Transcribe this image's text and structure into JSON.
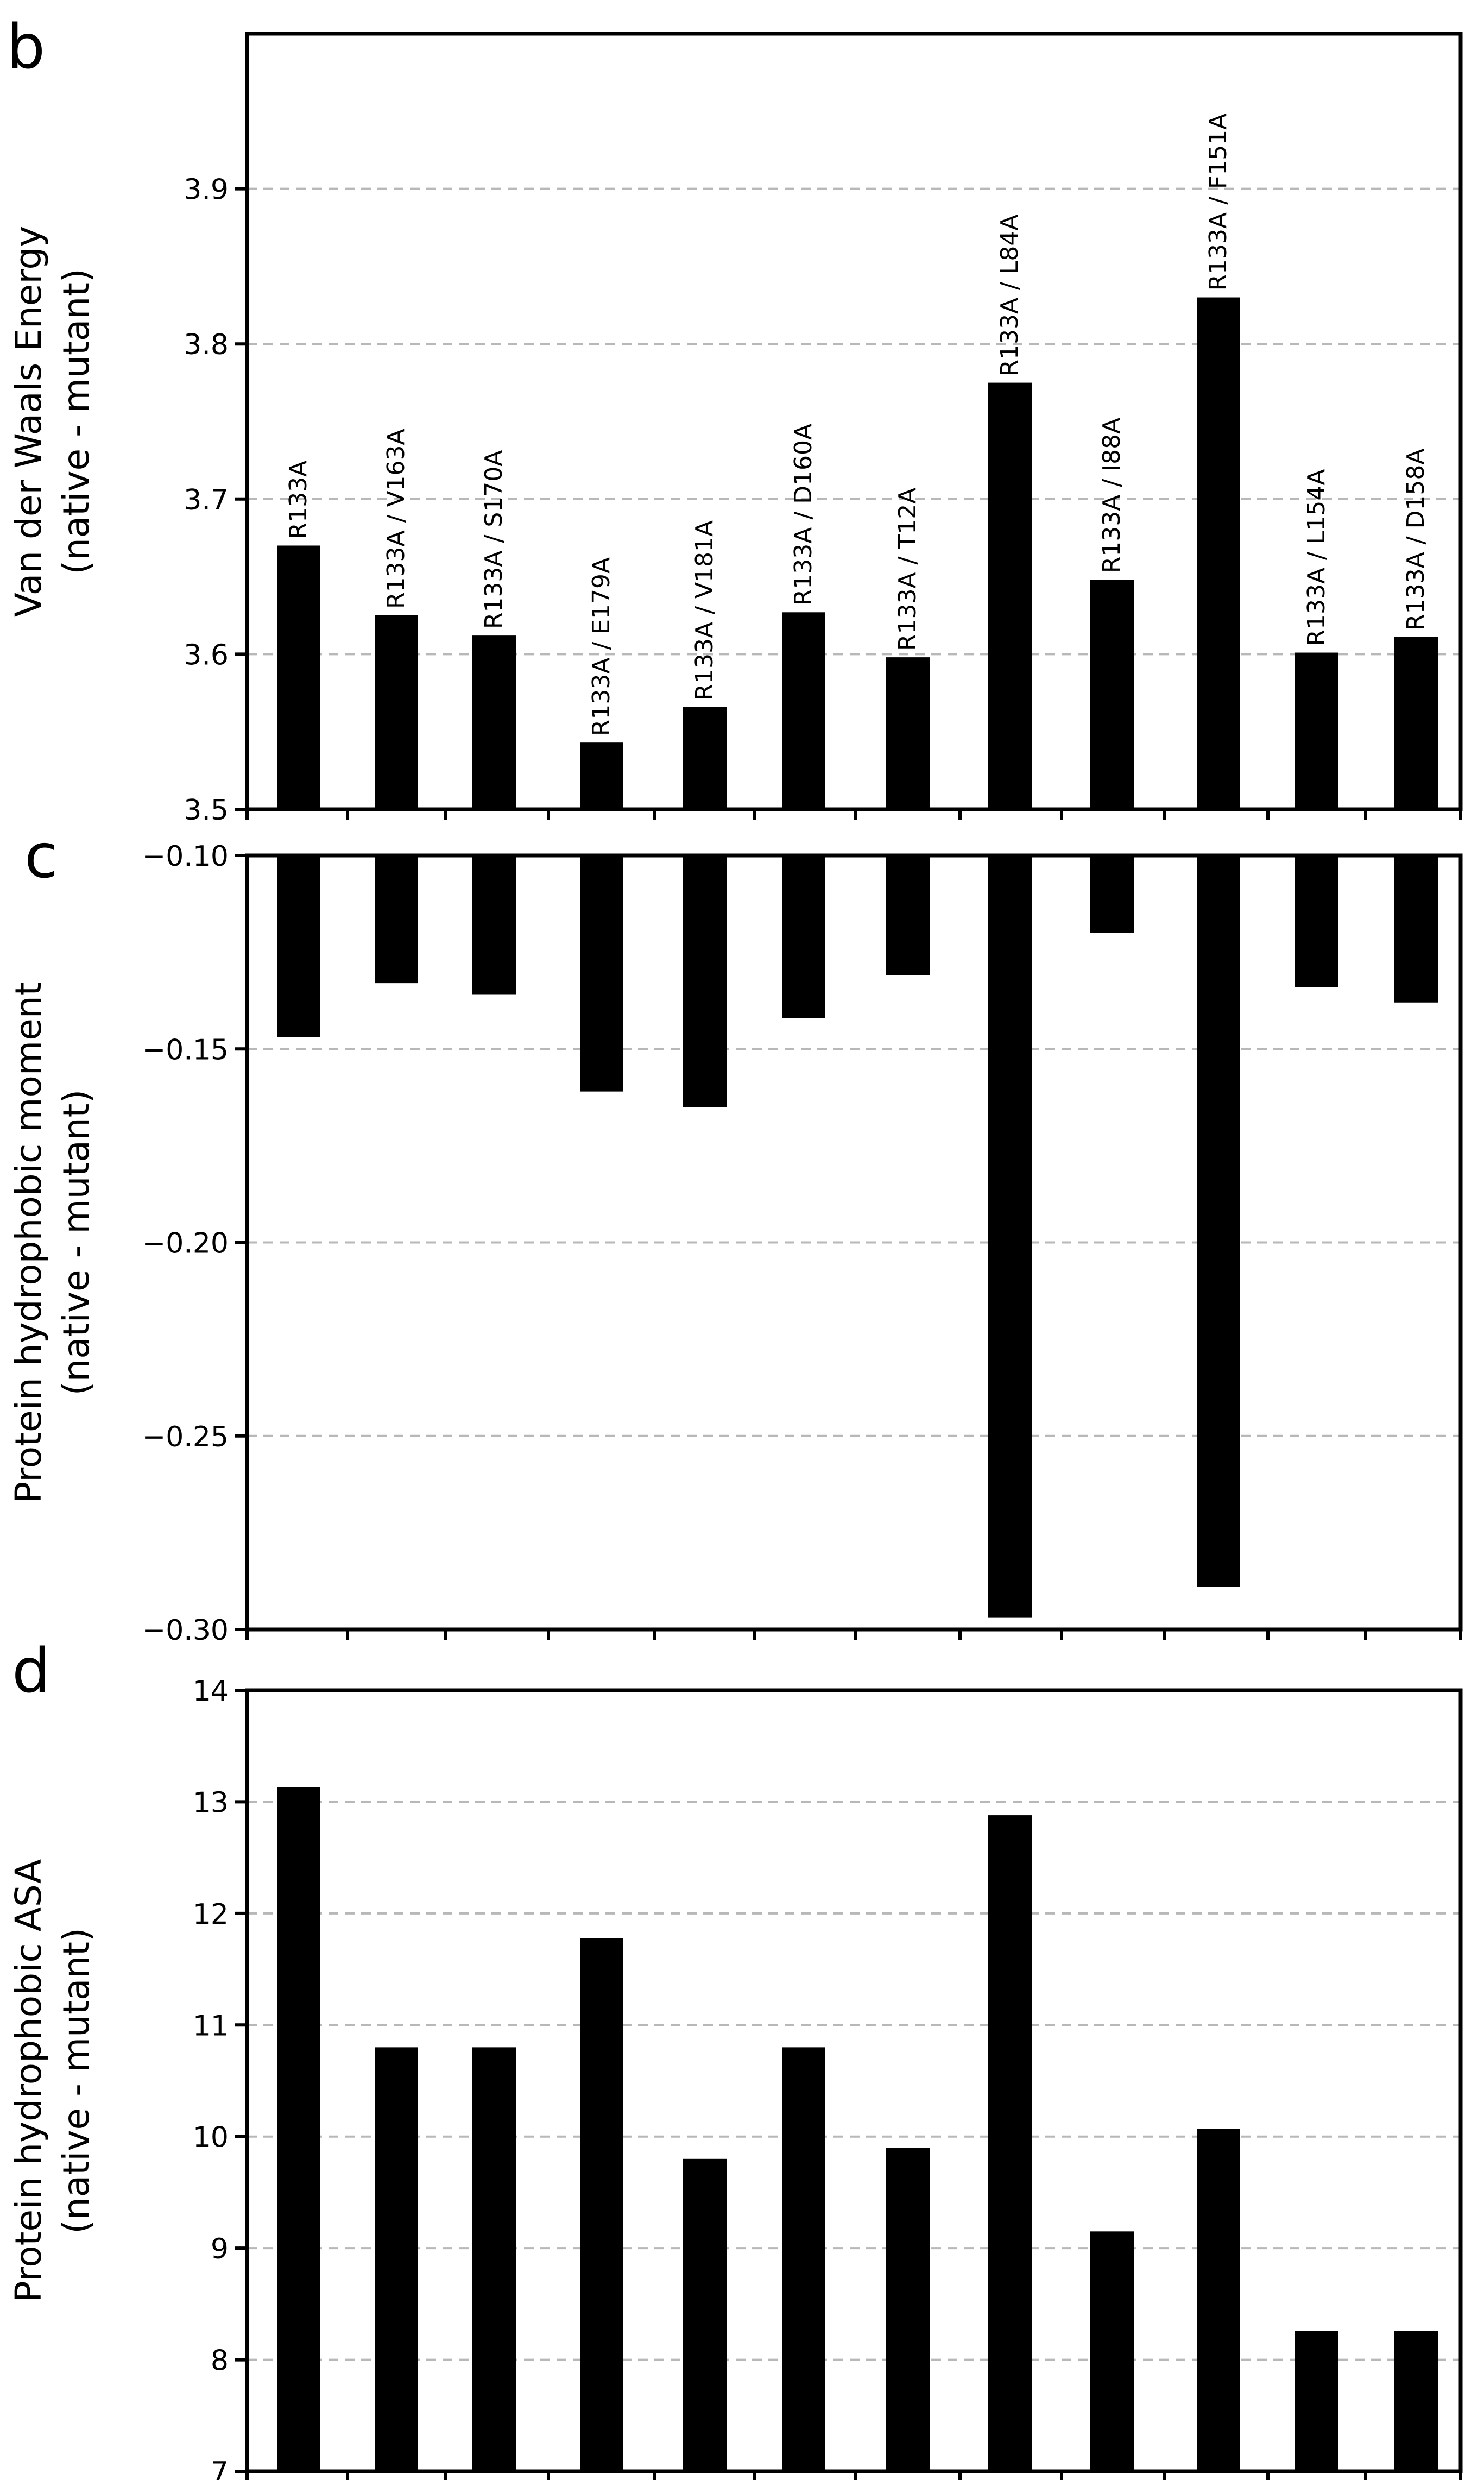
{
  "chart_data": [
    {
      "panel": "b",
      "type": "bar",
      "ylabel": [
        "Van der Waals Energy",
        "(native - mutant)"
      ],
      "ylim": [
        3.5,
        4.0
      ],
      "yticks": [
        3.5,
        3.6,
        3.7,
        3.8,
        3.9
      ],
      "ytick_labels": [
        "3.5",
        "3.6",
        "3.7",
        "3.8",
        "3.9"
      ],
      "grid": true,
      "categories": [
        "R133A",
        "R133A / V163A",
        "R133A / S170A",
        "R133A / E179A",
        "R133A / V181A",
        "R133A / D160A",
        "R133A / T12A",
        "R133A / L84A",
        "R133A / I88A",
        "R133A / F151A",
        "R133A / L154A",
        "R133A / D158A"
      ],
      "values": [
        3.67,
        3.625,
        3.612,
        3.543,
        3.566,
        3.627,
        3.598,
        3.775,
        3.648,
        3.83,
        3.601,
        3.611
      ]
    },
    {
      "panel": "c",
      "type": "bar",
      "ylabel": [
        "Protein hydrophobic moment",
        "(native - mutant)"
      ],
      "ylim": [
        -0.3,
        -0.1
      ],
      "yticks": [
        -0.1,
        -0.15,
        -0.2,
        -0.25,
        -0.3
      ],
      "ytick_labels": [
        "−0.10",
        "−0.15",
        "−0.20",
        "−0.25",
        "−0.30"
      ],
      "grid": true,
      "categories": [
        "R133A",
        "R133A / V163A",
        "R133A / S170A",
        "R133A / E179A",
        "R133A / V181A",
        "R133A / D160A",
        "R133A / T12A",
        "R133A / L84A",
        "R133A / I88A",
        "R133A / F151A",
        "R133A / L154A",
        "R133A / D158A"
      ],
      "values": [
        -0.147,
        -0.133,
        -0.136,
        -0.161,
        -0.165,
        -0.142,
        -0.131,
        -0.297,
        -0.12,
        -0.289,
        -0.134,
        -0.138
      ]
    },
    {
      "panel": "d",
      "type": "bar",
      "ylabel": [
        "Protein hydrophobic ASA",
        "(native - mutant)"
      ],
      "ylim": [
        7,
        14
      ],
      "yticks": [
        7,
        8,
        9,
        10,
        11,
        12,
        13,
        14
      ],
      "ytick_labels": [
        "7",
        "8",
        "9",
        "10",
        "11",
        "12",
        "13",
        "14"
      ],
      "grid": true,
      "categories": [
        "R133A",
        "R133A / V163A",
        "R133A / S170A",
        "R133A / E179A",
        "R133A / V181A",
        "R133A / D160A",
        "R133A / T12A",
        "R133A / L84A",
        "R133A / I88A",
        "R133A / F151A",
        "R133A / L154A",
        "R133A / D158A"
      ],
      "values": [
        13.13,
        10.8,
        10.8,
        11.78,
        9.8,
        10.8,
        9.9,
        12.88,
        9.15,
        10.07,
        8.26,
        8.26
      ]
    }
  ],
  "colors": {
    "bar": "#000000",
    "grid": "#b8b8b8",
    "axis": "#000000"
  }
}
